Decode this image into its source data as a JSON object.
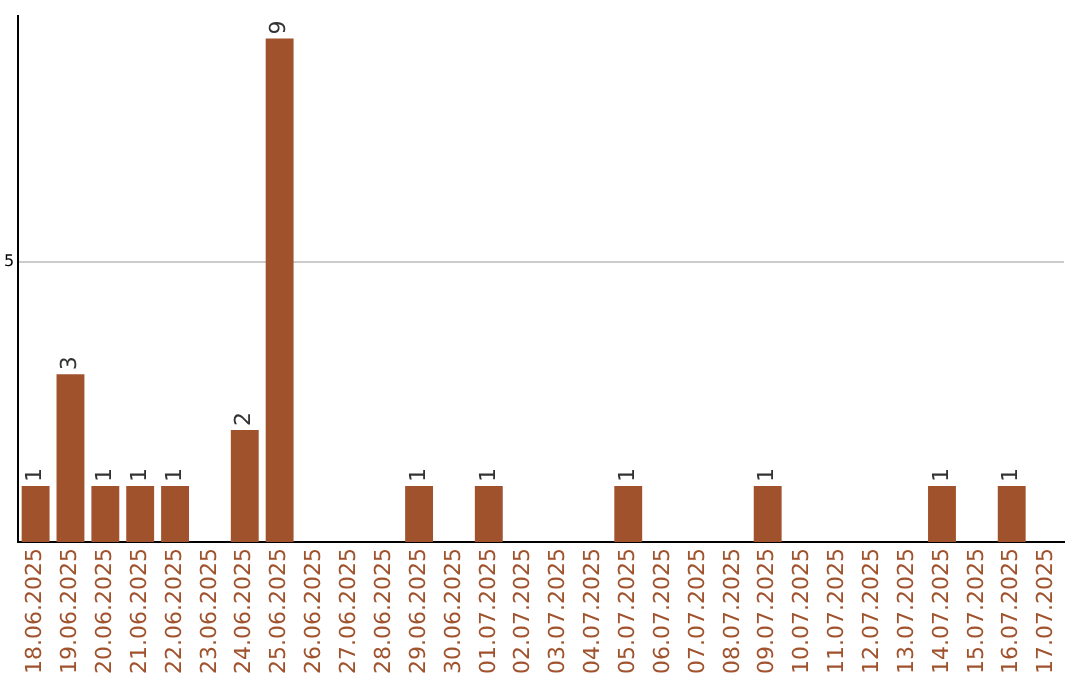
{
  "chart_data": {
    "type": "bar",
    "categories": [
      "18.06.2025",
      "19.06.2025",
      "20.06.2025",
      "21.06.2025",
      "22.06.2025",
      "23.06.2025",
      "24.06.2025",
      "25.06.2025",
      "26.06.2025",
      "27.06.2025",
      "28.06.2025",
      "29.06.2025",
      "30.06.2025",
      "01.07.2025",
      "02.07.2025",
      "03.07.2025",
      "04.07.2025",
      "05.07.2025",
      "06.07.2025",
      "07.07.2025",
      "08.07.2025",
      "09.07.2025",
      "10.07.2025",
      "11.07.2025",
      "12.07.2025",
      "13.07.2025",
      "14.07.2025",
      "15.07.2025",
      "16.07.2025",
      "17.07.2025"
    ],
    "values": [
      1,
      3,
      1,
      1,
      1,
      0,
      2,
      9,
      0,
      0,
      0,
      1,
      0,
      1,
      0,
      0,
      0,
      1,
      0,
      0,
      0,
      1,
      0,
      0,
      0,
      0,
      1,
      0,
      1,
      0
    ],
    "value_labels": [
      "1",
      "3",
      "1",
      "1",
      "1",
      null,
      "2",
      "9",
      null,
      null,
      null,
      "1",
      null,
      "1",
      null,
      null,
      null,
      "1",
      null,
      null,
      null,
      "1",
      null,
      null,
      null,
      null,
      "1",
      null,
      "1",
      null
    ],
    "color": "#a0522d",
    "ylim": [
      0,
      9.4
    ],
    "yticks": [
      5
    ],
    "grid": "y",
    "legend": false
  }
}
